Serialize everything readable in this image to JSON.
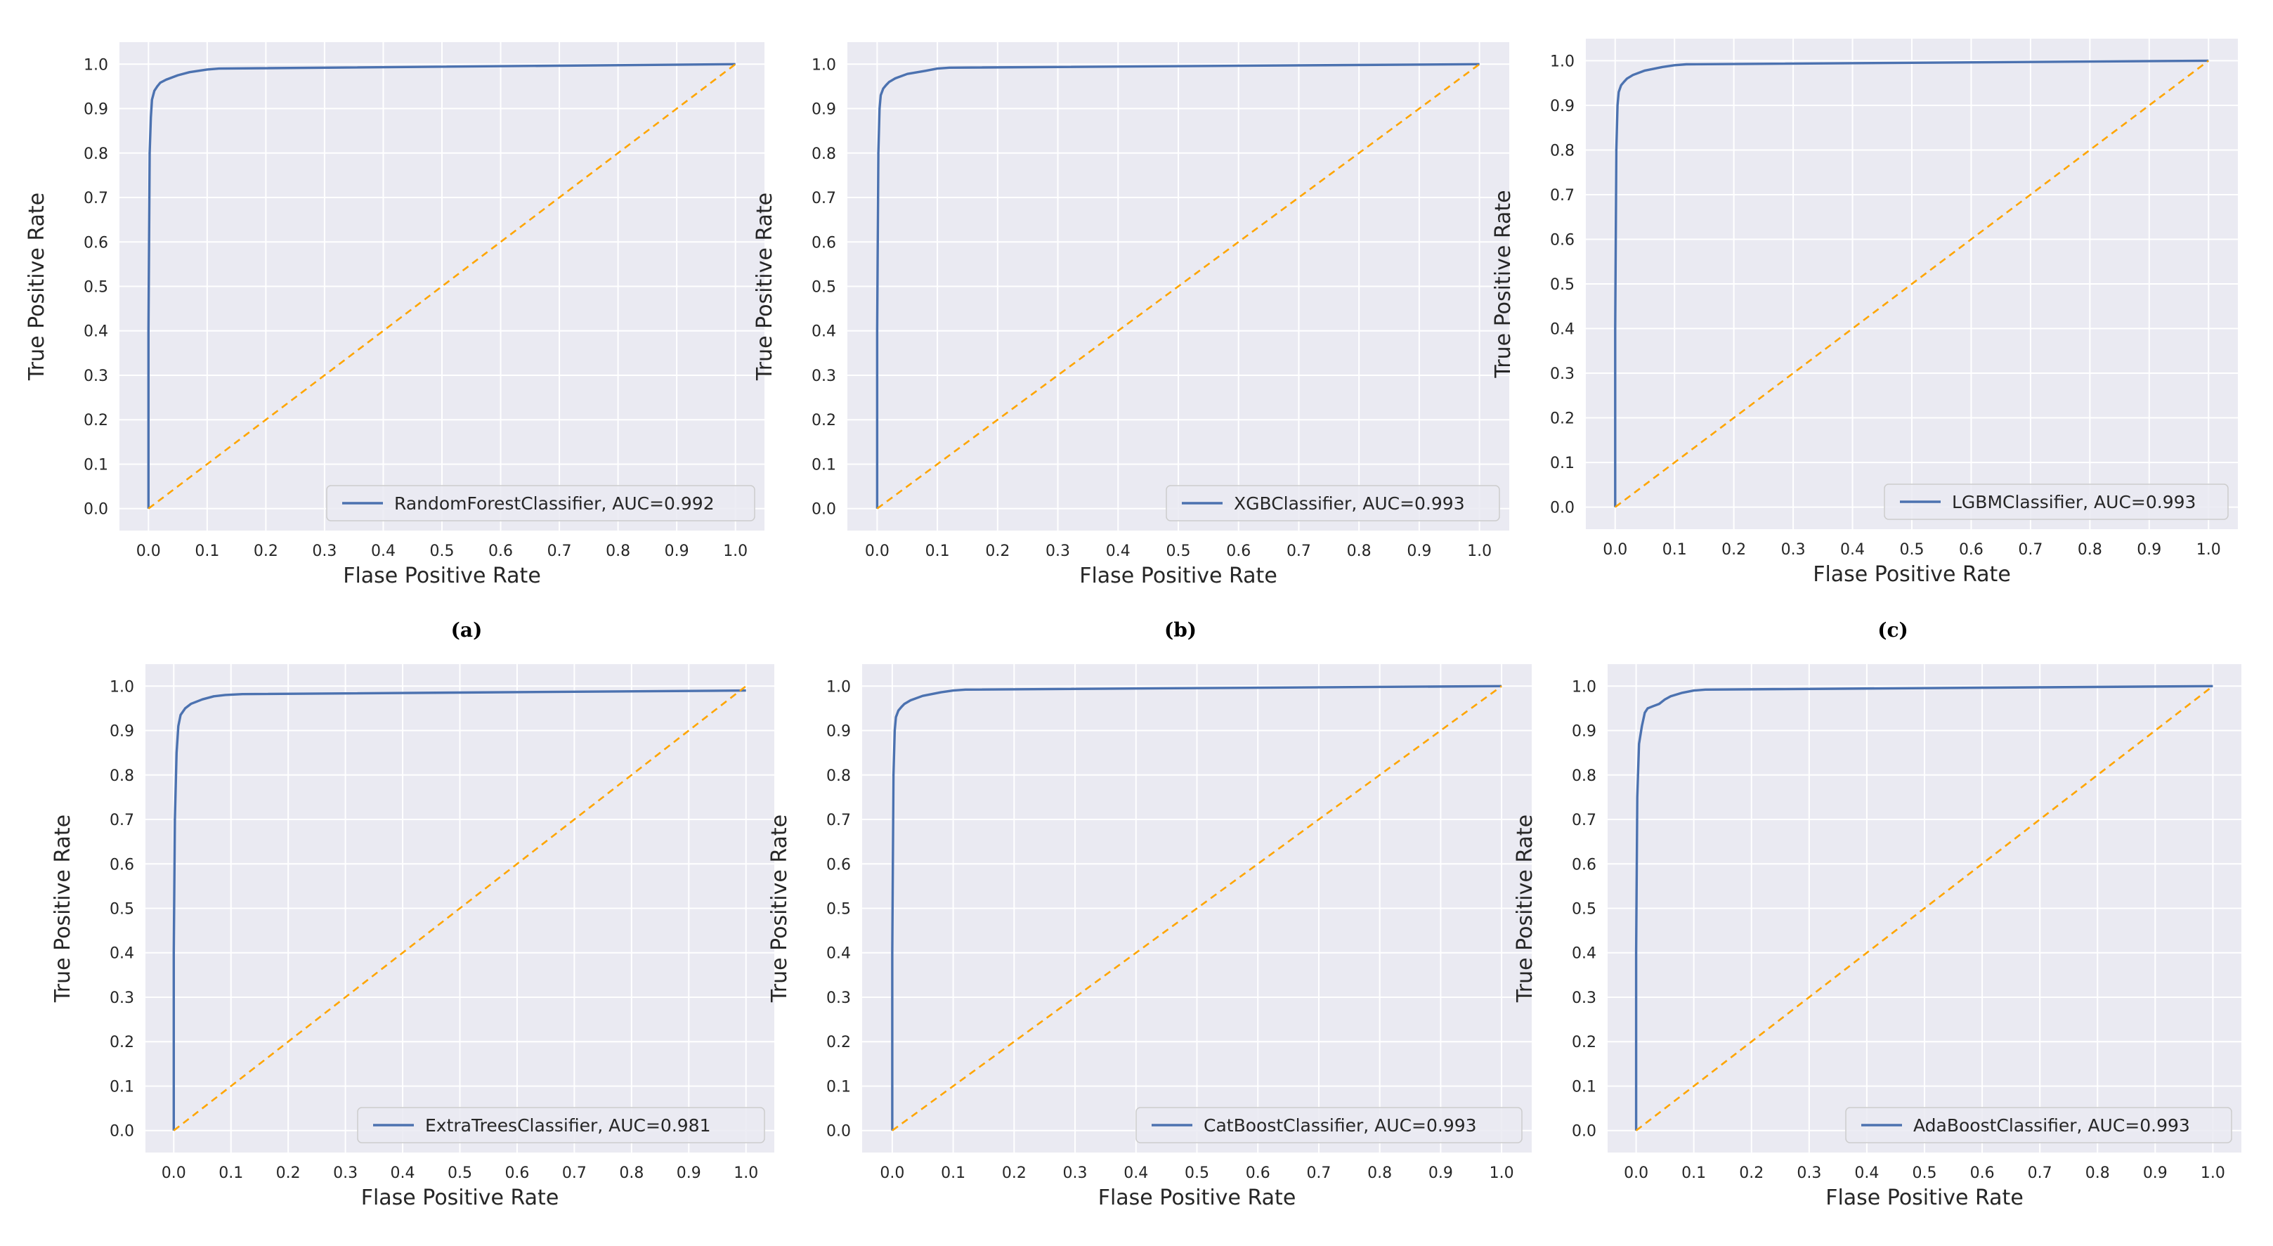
{
  "figure": {
    "panel_labels": [
      "(a)",
      "(b)",
      "(c)"
    ]
  },
  "colors": {
    "plot_background": "#eaeaf2",
    "grid": "#ffffff",
    "roc_line": "#4c72b0",
    "diagonal": "#ffa500",
    "tick_text": "#262626"
  },
  "chart_data": [
    {
      "type": "line",
      "xlabel": "Flase Positive Rate",
      "ylabel": "True Positive Rate",
      "xlim": [
        0.0,
        1.0
      ],
      "ylim": [
        0.0,
        1.0
      ],
      "xticks": [
        "0.0",
        "0.1",
        "0.2",
        "0.3",
        "0.4",
        "0.5",
        "0.6",
        "0.7",
        "0.8",
        "0.9",
        "1.0"
      ],
      "yticks": [
        "0.0",
        "0.1",
        "0.2",
        "0.3",
        "0.4",
        "0.5",
        "0.6",
        "0.7",
        "0.8",
        "0.9",
        "1.0"
      ],
      "grid": true,
      "legend_position": "lower-right",
      "series": [
        {
          "name": "RandomForestClassifier, AUC=0.992",
          "style": "solid",
          "x": [
            0.0,
            0.0,
            0.002,
            0.004,
            0.006,
            0.01,
            0.015,
            0.02,
            0.03,
            0.05,
            0.07,
            0.1,
            0.12,
            1.0
          ],
          "y": [
            0.0,
            0.4,
            0.8,
            0.88,
            0.92,
            0.94,
            0.95,
            0.958,
            0.965,
            0.975,
            0.982,
            0.988,
            0.99,
            1.0
          ]
        },
        {
          "name": "",
          "style": "dashed",
          "x": [
            0.0,
            1.0
          ],
          "y": [
            0.0,
            1.0
          ]
        }
      ]
    },
    {
      "type": "line",
      "xlabel": "Flase Positive Rate",
      "ylabel": "True Positive Rate",
      "xlim": [
        0.0,
        1.0
      ],
      "ylim": [
        0.0,
        1.0
      ],
      "xticks": [
        "0.0",
        "0.1",
        "0.2",
        "0.3",
        "0.4",
        "0.5",
        "0.6",
        "0.7",
        "0.8",
        "0.9",
        "1.0"
      ],
      "yticks": [
        "0.0",
        "0.1",
        "0.2",
        "0.3",
        "0.4",
        "0.5",
        "0.6",
        "0.7",
        "0.8",
        "0.9",
        "1.0"
      ],
      "grid": true,
      "legend_position": "lower-right",
      "series": [
        {
          "name": "XGBClassifier, AUC=0.993",
          "style": "solid",
          "x": [
            0.0,
            0.0,
            0.002,
            0.004,
            0.006,
            0.01,
            0.015,
            0.02,
            0.03,
            0.05,
            0.08,
            0.1,
            0.12,
            1.0
          ],
          "y": [
            0.0,
            0.4,
            0.8,
            0.9,
            0.93,
            0.945,
            0.953,
            0.96,
            0.968,
            0.978,
            0.985,
            0.99,
            0.992,
            1.0
          ]
        },
        {
          "name": "",
          "style": "dashed",
          "x": [
            0.0,
            1.0
          ],
          "y": [
            0.0,
            1.0
          ]
        }
      ]
    },
    {
      "type": "line",
      "xlabel": "Flase Positive Rate",
      "ylabel": "True Positive Rate",
      "xlim": [
        0.0,
        1.0
      ],
      "ylim": [
        0.0,
        1.0
      ],
      "xticks": [
        "0.0",
        "0.1",
        "0.2",
        "0.3",
        "0.4",
        "0.5",
        "0.6",
        "0.7",
        "0.8",
        "0.9",
        "1.0"
      ],
      "yticks": [
        "0.0",
        "0.1",
        "0.2",
        "0.3",
        "0.4",
        "0.5",
        "0.6",
        "0.7",
        "0.8",
        "0.9",
        "1.0"
      ],
      "grid": true,
      "legend_position": "lower-right",
      "series": [
        {
          "name": "LGBMClassifier, AUC=0.993",
          "style": "solid",
          "x": [
            0.0,
            0.0,
            0.002,
            0.004,
            0.006,
            0.01,
            0.015,
            0.02,
            0.03,
            0.05,
            0.08,
            0.1,
            0.12,
            1.0
          ],
          "y": [
            0.0,
            0.4,
            0.8,
            0.9,
            0.93,
            0.945,
            0.953,
            0.96,
            0.968,
            0.978,
            0.986,
            0.99,
            0.992,
            1.0
          ]
        },
        {
          "name": "",
          "style": "dashed",
          "x": [
            0.0,
            1.0
          ],
          "y": [
            0.0,
            1.0
          ]
        }
      ]
    },
    {
      "type": "line",
      "xlabel": "Flase Positive Rate",
      "ylabel": "True Positive Rate",
      "xlim": [
        0.0,
        1.0
      ],
      "ylim": [
        0.0,
        1.0
      ],
      "xticks": [
        "0.0",
        "0.1",
        "0.2",
        "0.3",
        "0.4",
        "0.5",
        "0.6",
        "0.7",
        "0.8",
        "0.9",
        "1.0"
      ],
      "yticks": [
        "0.0",
        "0.1",
        "0.2",
        "0.3",
        "0.4",
        "0.5",
        "0.6",
        "0.7",
        "0.8",
        "0.9",
        "1.0"
      ],
      "grid": true,
      "legend_position": "lower-right",
      "series": [
        {
          "name": "ExtraTreesClassifier, AUC=0.981",
          "style": "solid",
          "x": [
            0.0,
            0.0,
            0.002,
            0.005,
            0.008,
            0.012,
            0.02,
            0.03,
            0.05,
            0.07,
            0.09,
            0.12,
            1.0
          ],
          "y": [
            0.0,
            0.4,
            0.7,
            0.85,
            0.91,
            0.935,
            0.95,
            0.96,
            0.97,
            0.977,
            0.98,
            0.982,
            0.99
          ]
        },
        {
          "name": "",
          "style": "dashed",
          "x": [
            0.0,
            1.0
          ],
          "y": [
            0.0,
            1.0
          ]
        }
      ]
    },
    {
      "type": "line",
      "xlabel": "Flase Positive Rate",
      "ylabel": "True Positive Rate",
      "xlim": [
        0.0,
        1.0
      ],
      "ylim": [
        0.0,
        1.0
      ],
      "xticks": [
        "0.0",
        "0.1",
        "0.2",
        "0.3",
        "0.4",
        "0.5",
        "0.6",
        "0.7",
        "0.8",
        "0.9",
        "1.0"
      ],
      "yticks": [
        "0.0",
        "0.1",
        "0.2",
        "0.3",
        "0.4",
        "0.5",
        "0.6",
        "0.7",
        "0.8",
        "0.9",
        "1.0"
      ],
      "grid": true,
      "legend_position": "lower-right",
      "series": [
        {
          "name": "CatBoostClassifier, AUC=0.993",
          "style": "solid",
          "x": [
            0.0,
            0.0,
            0.002,
            0.004,
            0.006,
            0.01,
            0.015,
            0.02,
            0.03,
            0.05,
            0.08,
            0.1,
            0.12,
            1.0
          ],
          "y": [
            0.0,
            0.4,
            0.8,
            0.9,
            0.93,
            0.945,
            0.953,
            0.96,
            0.968,
            0.978,
            0.986,
            0.99,
            0.992,
            1.0
          ]
        },
        {
          "name": "",
          "style": "dashed",
          "x": [
            0.0,
            1.0
          ],
          "y": [
            0.0,
            1.0
          ]
        }
      ]
    },
    {
      "type": "line",
      "xlabel": "Flase Positive Rate",
      "ylabel": "True Positive Rate",
      "xlim": [
        0.0,
        1.0
      ],
      "ylim": [
        0.0,
        1.0
      ],
      "xticks": [
        "0.0",
        "0.1",
        "0.2",
        "0.3",
        "0.4",
        "0.5",
        "0.6",
        "0.7",
        "0.8",
        "0.9",
        "1.0"
      ],
      "yticks": [
        "0.0",
        "0.1",
        "0.2",
        "0.3",
        "0.4",
        "0.5",
        "0.6",
        "0.7",
        "0.8",
        "0.9",
        "1.0"
      ],
      "grid": true,
      "legend_position": "lower-right",
      "series": [
        {
          "name": "AdaBoostClassifier, AUC=0.993",
          "style": "solid",
          "x": [
            0.0,
            0.0,
            0.002,
            0.005,
            0.01,
            0.015,
            0.02,
            0.03,
            0.04,
            0.05,
            0.06,
            0.08,
            0.1,
            0.12,
            1.0
          ],
          "y": [
            0.0,
            0.4,
            0.75,
            0.87,
            0.91,
            0.94,
            0.95,
            0.955,
            0.96,
            0.97,
            0.977,
            0.985,
            0.99,
            0.992,
            1.0
          ]
        },
        {
          "name": "",
          "style": "dashed",
          "x": [
            0.0,
            1.0
          ],
          "y": [
            0.0,
            1.0
          ]
        }
      ]
    }
  ]
}
